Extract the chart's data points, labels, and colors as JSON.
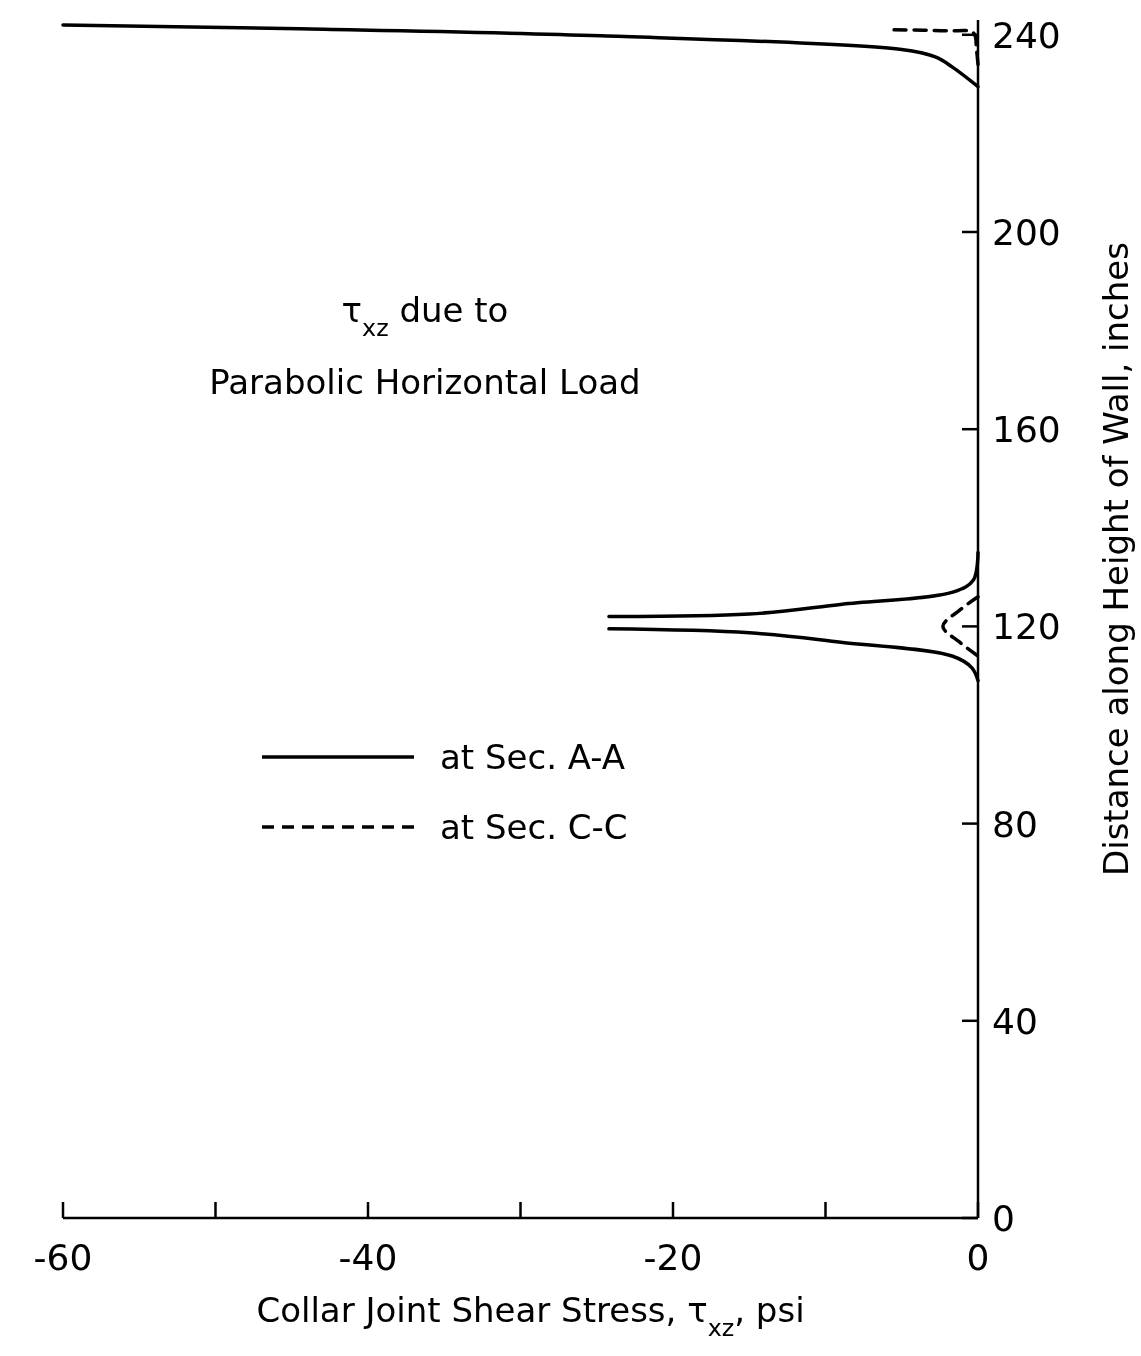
{
  "chart_data": {
    "type": "line",
    "xlabel": "Collar Joint Shear Stress, τ$_{xz}$, psi",
    "ylabel": "Distance along Height of Wall, inches",
    "annotations": [
      "τ$_{xz}$ due to",
      "Parabolic Horizontal Load"
    ],
    "xlim": [
      -60,
      0
    ],
    "ylim": [
      0,
      243
    ],
    "xticks": [
      -60,
      {
        "value": -50,
        "label": null
      },
      -40,
      {
        "value": -30,
        "label": null
      },
      -20,
      {
        "value": -10,
        "label": null
      },
      0
    ],
    "yticks": [
      0,
      40,
      80,
      120,
      160,
      200,
      240
    ],
    "grid": false,
    "legend": "left",
    "marker": "none",
    "series": [
      {
        "name": "at Sec. A-A",
        "color": "#000000",
        "line_style": "solid",
        "x": [
          -60,
          -44.5,
          -24.7,
          -5,
          -2.8,
          -1.7,
          0,
          null,
          -24.2,
          -15,
          -8.9,
          -1.6,
          -0.3,
          0,
          null,
          -24.2,
          -15,
          -9,
          -1.7,
          -0.4,
          0
        ],
        "values": [
          242,
          241.2,
          239.8,
          237,
          235.5,
          233.5,
          229.5,
          null,
          122,
          122.5,
          124.5,
          127,
          129.4,
          135,
          null,
          119.5,
          118.7,
          116.8,
          114,
          111.6,
          109
        ]
      },
      {
        "name": "at Sec. C-C",
        "color": "#000000",
        "line_style": "dashed",
        "x": [
          -5.5,
          -2,
          -0.3,
          -0.1,
          0,
          null,
          0,
          -1.2,
          -2.3,
          -1.2,
          0
        ],
        "values": [
          241,
          240.8,
          240.4,
          237,
          234,
          null,
          126,
          123.3,
          120,
          116.8,
          114
        ]
      }
    ]
  }
}
